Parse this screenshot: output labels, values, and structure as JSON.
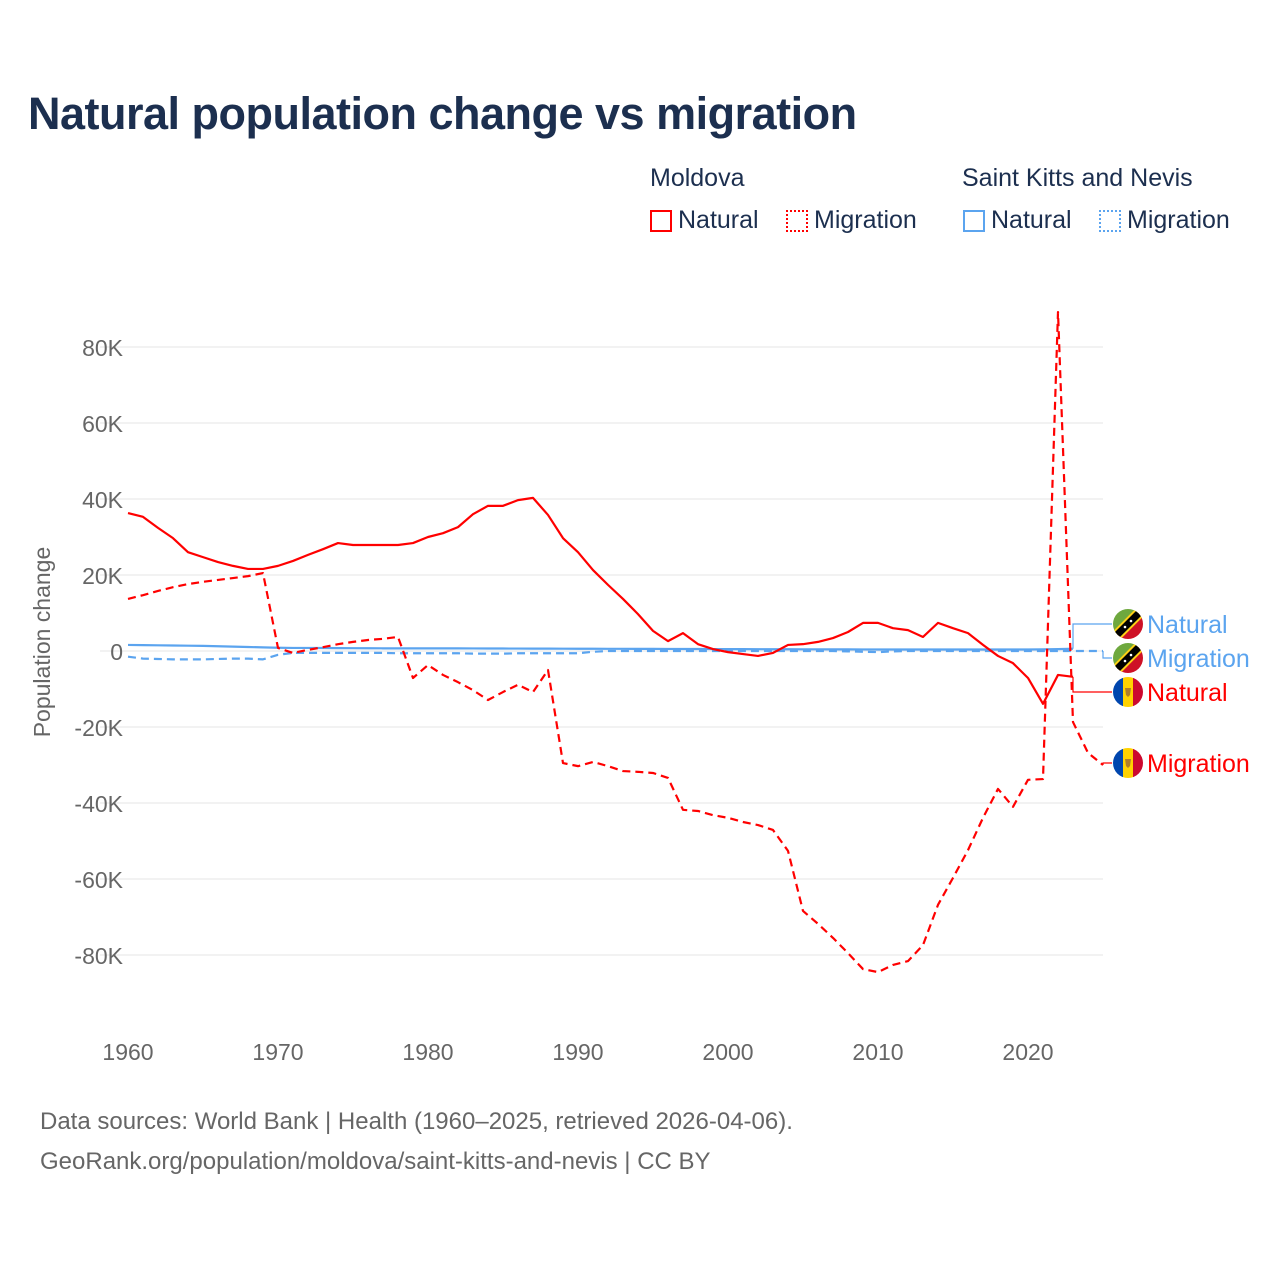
{
  "colors": {
    "moldova": "#ff0000",
    "skn": "#5ba4ef",
    "title": "#1c2f4f",
    "grid": "#e6e6e6",
    "tick": "#666666"
  },
  "legend": {
    "groups": [
      {
        "name": "Moldova",
        "items": [
          {
            "label": "Natural",
            "style": "solid"
          },
          {
            "label": "Migration",
            "style": "dotted"
          }
        ]
      },
      {
        "name": "Saint Kitts and Nevis",
        "items": [
          {
            "label": "Natural",
            "style": "solid"
          },
          {
            "label": "Migration",
            "style": "dotted"
          }
        ]
      }
    ]
  },
  "footer": {
    "line1": "Data sources: World Bank | Health (1960–2025, retrieved 2026-04-06).",
    "line2": "GeoRank.org/population/moldova/saint-kitts-and-nevis | CC BY"
  },
  "chart_data": {
    "type": "line",
    "title": "Natural population change vs migration",
    "xlabel": "",
    "ylabel": "Population change",
    "xlim": [
      1960,
      2025
    ],
    "ylim": [
      -100000,
      90000
    ],
    "grid": true,
    "legend_position": "top-right",
    "x_ticks": [
      1960,
      1970,
      1980,
      1990,
      2000,
      2010,
      2020
    ],
    "x_tick_labels": [
      "1960",
      "1970",
      "1980",
      "1990",
      "2000",
      "2010",
      "2020"
    ],
    "y_ticks": [
      80000,
      60000,
      40000,
      20000,
      0,
      -20000,
      -40000,
      -60000,
      -80000
    ],
    "y_tick_labels": [
      "80K",
      "60K",
      "40K",
      "20K",
      "0",
      "-20K",
      "-40K",
      "-60K",
      "-80K"
    ],
    "series": [
      {
        "name": "Saint Kitts and Nevis Natural",
        "label": "Natural",
        "country": "skn",
        "dash": false,
        "start": 1960,
        "values": [
          1600,
          1550,
          1500,
          1450,
          1400,
          1350,
          1250,
          1150,
          1050,
          950,
          850,
          800,
          800,
          780,
          760,
          740,
          720,
          700,
          700,
          700,
          700,
          700,
          700,
          680,
          660,
          650,
          640,
          630,
          620,
          610,
          600,
          590,
          580,
          570,
          560,
          550,
          540,
          530,
          520,
          510,
          500,
          490,
          480,
          470,
          460,
          450,
          440,
          430,
          420,
          410,
          400,
          400,
          400,
          400,
          400,
          400,
          400,
          400,
          400,
          400,
          400,
          450,
          500,
          600
        ]
      },
      {
        "name": "Saint Kitts and Nevis Migration",
        "label": "Migration",
        "country": "skn",
        "dash": true,
        "start": 1960,
        "values": [
          -1500,
          -2000,
          -2100,
          -2200,
          -2200,
          -2200,
          -2100,
          -2000,
          -2000,
          -2200,
          -1000,
          -500,
          -500,
          -500,
          -500,
          -500,
          -500,
          -500,
          -600,
          -600,
          -600,
          -600,
          -600,
          -700,
          -700,
          -700,
          -600,
          -600,
          -600,
          -600,
          -600,
          -200,
          0,
          0,
          0,
          0,
          0,
          0,
          0,
          0,
          0,
          0,
          0,
          0,
          0,
          0,
          0,
          0,
          -100,
          -200,
          -300,
          -100,
          0,
          0,
          0,
          0,
          0,
          0,
          0,
          0,
          0,
          0,
          0,
          0,
          0,
          0
        ]
      },
      {
        "name": "Moldova Natural",
        "label": "Natural",
        "country": "md",
        "dash": false,
        "start": 1960,
        "values": [
          36300,
          35300,
          32400,
          29700,
          26000,
          24700,
          23400,
          22400,
          21600,
          21600,
          22400,
          23700,
          25300,
          26800,
          28400,
          27900,
          27900,
          27900,
          27900,
          28400,
          30000,
          31000,
          32600,
          36000,
          38200,
          38200,
          39700,
          40300,
          35800,
          29700,
          26000,
          21300,
          17400,
          13700,
          9700,
          5300,
          2600,
          4700,
          1800,
          500,
          -300,
          -800,
          -1300,
          -500,
          1600,
          1800,
          2400,
          3400,
          5000,
          7400,
          7400,
          6000,
          5500,
          3700,
          7400,
          6000,
          4700,
          1600,
          -1300,
          -3200,
          -7100,
          -13900,
          -6300,
          -6800
        ]
      },
      {
        "name": "Moldova Migration",
        "label": "Migration",
        "country": "md",
        "dash": true,
        "start": 1960,
        "values": [
          13700,
          14700,
          15800,
          16800,
          17600,
          18200,
          18700,
          19200,
          19700,
          20500,
          800,
          -500,
          300,
          1000,
          1800,
          2400,
          2900,
          3200,
          3700,
          -7100,
          -3700,
          -6300,
          -8200,
          -10300,
          -12900,
          -10800,
          -8900,
          -10800,
          -5000,
          -29500,
          -30300,
          -29200,
          -30300,
          -31600,
          -31800,
          -32100,
          -33400,
          -41800,
          -42100,
          -43200,
          -43900,
          -45000,
          -45800,
          -47100,
          -52600,
          -68400,
          -71800,
          -75500,
          -79500,
          -83700,
          -84500,
          -82600,
          -81600,
          -77400,
          -66800,
          -59700,
          -52400,
          -43900,
          -36300,
          -41000,
          -33900,
          -33700,
          89200,
          -18700,
          -26800,
          -30000
        ]
      }
    ]
  }
}
